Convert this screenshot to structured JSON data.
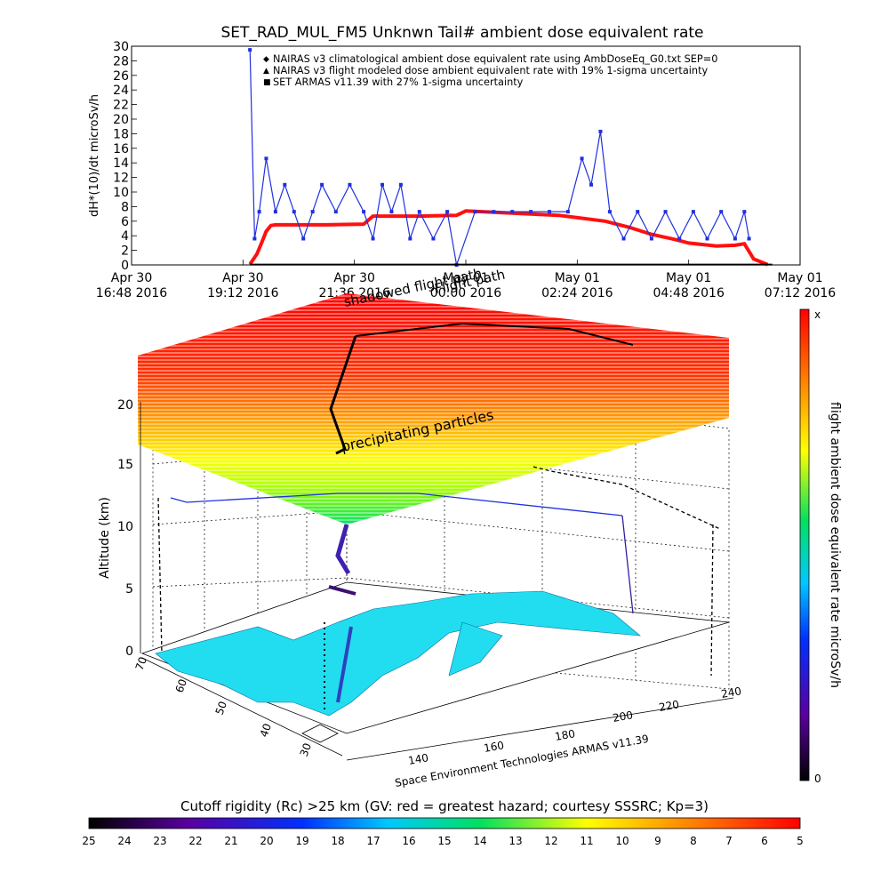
{
  "title": "SET_RAD_MUL_FM5 Unknwn Tail#  ambient dose equivalent rate",
  "chart_data": [
    {
      "type": "line",
      "title": "SET_RAD_MUL_FM5 Unknwn Tail#  ambient dose equivalent rate",
      "ylabel": "dH*(10)/dt microSv/h",
      "xlabel": "",
      "ylim": [
        0,
        30
      ],
      "y_ticks": [
        "0",
        "2",
        "4",
        "6",
        "8",
        "10",
        "12",
        "14",
        "16",
        "18",
        "20",
        "22",
        "24",
        "26",
        "28",
        "30"
      ],
      "xlim_hours": [
        16.8,
        31.2
      ],
      "x_ticks": [
        {
          "t": 16.8,
          "line1": "Apr 30",
          "line2": "16:48 2016"
        },
        {
          "t": 19.2,
          "line1": "Apr 30",
          "line2": "19:12 2016"
        },
        {
          "t": 21.6,
          "line1": "Apr 30",
          "line2": "21:36 2016"
        },
        {
          "t": 24.0,
          "line1": "May 01",
          "line2": "00:00 2016"
        },
        {
          "t": 26.4,
          "line1": "May 01",
          "line2": "02:24 2016"
        },
        {
          "t": 28.8,
          "line1": "May 01",
          "line2": "04:48 2016"
        },
        {
          "t": 31.2,
          "line1": "May 01",
          "line2": "07:12 2016"
        }
      ],
      "legend": [
        {
          "marker": "◆",
          "color": "#d03030",
          "label": "NAIRAS v3 climatological ambient dose equivalent rate using AmbDoseEq_G0.txt SEP=0"
        },
        {
          "marker": "▲",
          "color": "#000000",
          "label": "NAIRAS v3 flight modeled dose ambient equivalent rate with 19% 1-sigma uncertainty"
        },
        {
          "marker": "■",
          "color": "#2030e0",
          "label": "SET ARMAS v11.39 with 27% 1-sigma uncertainty"
        }
      ],
      "series": [
        {
          "color": "#ff1010",
          "x": [
            19.35,
            19.5,
            19.6,
            19.7,
            19.8,
            19.9,
            20.0,
            21.0,
            21.8,
            22.0,
            23.0,
            23.8,
            24.0,
            25.0,
            26.0,
            27.0,
            27.5,
            28.0,
            28.5,
            28.8,
            29.4,
            29.8,
            30.0,
            30.2,
            30.5
          ],
          "y": [
            0.1,
            1.5,
            3.0,
            4.6,
            5.4,
            5.5,
            5.5,
            5.5,
            5.6,
            6.7,
            6.7,
            6.8,
            7.4,
            7.1,
            6.8,
            6.0,
            5.2,
            4.2,
            3.5,
            3.0,
            2.6,
            2.7,
            2.9,
            0.8,
            0.05
          ]
        },
        {
          "color": "#2030e0",
          "x": [
            19.35,
            19.45,
            19.55,
            19.7,
            19.9,
            20.1,
            20.3,
            20.5,
            20.7,
            20.9,
            21.2,
            21.5,
            21.8,
            22.0,
            22.2,
            22.4,
            22.6,
            22.8,
            23.0,
            23.3,
            23.6,
            23.8,
            24.2,
            24.6,
            25.0,
            25.4,
            25.8,
            26.2,
            26.5,
            26.7,
            26.9,
            27.1,
            27.4,
            27.7,
            28.0,
            28.3,
            28.6,
            28.9,
            29.2,
            29.5,
            29.8,
            30.0,
            30.1
          ],
          "y": [
            29.5,
            3.6,
            7.3,
            14.6,
            7.3,
            11.0,
            7.3,
            3.6,
            7.3,
            11.0,
            7.3,
            11.0,
            7.3,
            3.6,
            11.0,
            7.3,
            11.0,
            3.6,
            7.3,
            3.6,
            7.3,
            0.0,
            7.3,
            7.3,
            7.3,
            7.3,
            7.3,
            7.3,
            14.6,
            11.0,
            18.3,
            7.3,
            3.6,
            7.3,
            3.6,
            7.3,
            3.6,
            7.3,
            3.6,
            7.3,
            3.6,
            7.3,
            3.6
          ]
        },
        {
          "color": "#000000",
          "x": [
            19.35,
            30.6
          ],
          "y": [
            0.05,
            0.05
          ]
        }
      ]
    },
    {
      "type": "heatmap",
      "zlabel": "Altitude (km)",
      "z_ticks": [
        "0",
        "5",
        "10",
        "15",
        "20"
      ],
      "x_ticks": [
        "140",
        "160",
        "180",
        "200",
        "220",
        "240"
      ],
      "y_ticks": [
        "30",
        "40",
        "50",
        "60",
        "70"
      ],
      "colorbar": {
        "label": "flight ambient dose equivalent rate microSv/h",
        "top_label": "x",
        "bottom_label": "0",
        "colors": [
          "#000000",
          "#5a00a0",
          "#0030ff",
          "#00c8ff",
          "#00e060",
          "#ffff00",
          "#ff8000",
          "#ff0000"
        ]
      },
      "annotations": [
        "shadowed flight path",
        "Flight path",
        "precipitating particles",
        "Space Environment Technologies ARMAS v11.39"
      ]
    },
    {
      "type": "heatmap",
      "title": "Cutoff rigidity (Rc) >25 km (GV: red = greatest hazard; courtesy SSSRC; Kp=3)",
      "tick_labels": [
        "25",
        "24",
        "23",
        "22",
        "21",
        "20",
        "19",
        "18",
        "17",
        "16",
        "15",
        "14",
        "13",
        "12",
        "11",
        "10",
        "9",
        "8",
        "7",
        "6",
        "5"
      ],
      "colors": [
        "#000000",
        "#5a00a0",
        "#0030ff",
        "#00c8ff",
        "#00e060",
        "#ffff00",
        "#ff8000",
        "#ff0000"
      ]
    }
  ]
}
